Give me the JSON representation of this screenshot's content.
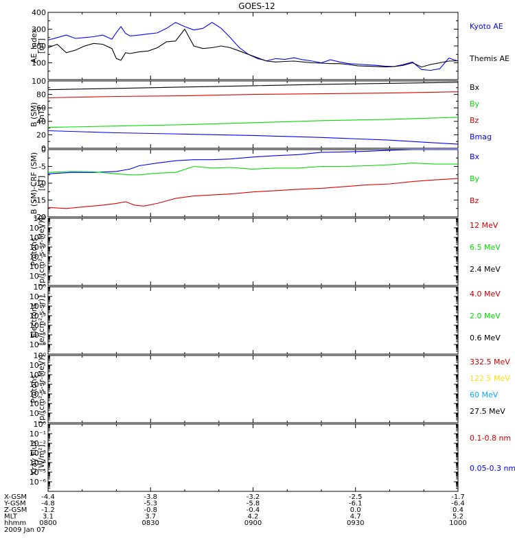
{
  "title": "GOES-12",
  "chart_data": [
    {
      "panel": "ae_index",
      "type": "line",
      "ylabel": [
        "AE_Index",
        "[nT]"
      ],
      "ylim": [
        0,
        400
      ],
      "yticks": [
        100,
        200,
        300,
        400
      ],
      "series": [
        {
          "name": "Kyoto AE",
          "color": "#0000ff",
          "x": [
            0,
            4,
            8,
            12,
            16,
            20,
            24,
            28,
            30,
            32,
            34,
            36,
            38,
            40,
            44,
            48,
            52,
            56,
            60,
            64,
            68,
            72,
            76,
            80,
            84,
            88,
            92,
            96,
            100,
            104,
            108,
            112,
            116,
            120,
            124,
            128,
            132,
            136,
            140,
            144,
            148,
            152,
            156,
            160,
            164,
            168,
            172,
            176,
            180
          ],
          "y": [
            235,
            250,
            265,
            245,
            250,
            255,
            265,
            240,
            280,
            315,
            275,
            260,
            262,
            265,
            272,
            278,
            305,
            340,
            315,
            295,
            305,
            340,
            305,
            250,
            190,
            150,
            125,
            112,
            125,
            120,
            130,
            118,
            110,
            100,
            118,
            105,
            95,
            92,
            88,
            85,
            80,
            78,
            90,
            105,
            60,
            55,
            65,
            128,
            110
          ]
        },
        {
          "name": "Themis AE",
          "color": "#000000",
          "x": [
            0,
            4,
            8,
            12,
            16,
            20,
            24,
            28,
            30,
            32,
            34,
            36,
            40,
            44,
            48,
            52,
            56,
            60,
            64,
            68,
            72,
            76,
            80,
            84,
            88,
            92,
            96,
            100,
            104,
            108,
            112,
            116,
            120,
            124,
            128,
            132,
            136,
            140,
            144,
            148,
            152,
            156,
            160,
            164,
            168,
            172,
            176,
            180
          ],
          "y": [
            190,
            210,
            160,
            175,
            200,
            215,
            210,
            185,
            125,
            115,
            160,
            155,
            165,
            170,
            190,
            225,
            230,
            300,
            200,
            185,
            190,
            200,
            190,
            170,
            150,
            130,
            110,
            105,
            108,
            110,
            105,
            100,
            98,
            95,
            95,
            90,
            82,
            80,
            78,
            76,
            78,
            85,
            100,
            75,
            90,
            100,
            110,
            112
          ]
        }
      ]
    },
    {
      "panel": "b_sm",
      "type": "line",
      "ylabel": [
        "B (SM)",
        "[nT]"
      ],
      "ylim": [
        0,
        100
      ],
      "yticks": [
        0,
        20,
        40,
        60,
        80,
        100
      ],
      "series": [
        {
          "name": "Bx",
          "color": "#000000",
          "x": [
            0,
            30,
            60,
            90,
            120,
            150,
            180
          ],
          "y": [
            87,
            89,
            91,
            93,
            95,
            96.5,
            98
          ]
        },
        {
          "name": "By",
          "color": "#00dd00",
          "x": [
            0,
            30,
            60,
            90,
            120,
            150,
            180
          ],
          "y": [
            31,
            33,
            35,
            38,
            41,
            43,
            46
          ]
        },
        {
          "name": "Bz",
          "color": "#dd0000",
          "x": [
            0,
            30,
            60,
            90,
            120,
            150,
            180
          ],
          "y": [
            75,
            77,
            78,
            80,
            81,
            82,
            84
          ]
        },
        {
          "name": "Bmag",
          "color": "#0000ff",
          "x": [
            0,
            30,
            60,
            90,
            120,
            150,
            180
          ],
          "y": [
            26,
            23,
            21,
            19,
            16,
            12,
            6
          ]
        }
      ]
    },
    {
      "panel": "b_sm_minus_crf",
      "type": "line",
      "ylabel": [
        "B (SM)-CRF (SM)",
        "[nT]"
      ],
      "ylim": [
        -20,
        0
      ],
      "yticks": [
        -20,
        -15,
        -10,
        -5,
        0
      ],
      "series": [
        {
          "name": "Bx",
          "color": "#0000ff",
          "x": [
            0,
            10,
            20,
            30,
            36,
            40,
            48,
            56,
            64,
            72,
            80,
            90,
            100,
            110,
            120,
            130,
            140,
            150,
            160,
            170,
            180
          ],
          "y": [
            -7.2,
            -6.8,
            -6.8,
            -6.5,
            -5.8,
            -4.8,
            -4.0,
            -3.3,
            -3.0,
            -3.0,
            -2.8,
            -2.2,
            -1.8,
            -1.5,
            -0.8,
            -0.7,
            -0.5,
            -0.2,
            0.2,
            0.1,
            0.0
          ]
        },
        {
          "name": "By",
          "color": "#00dd00",
          "x": [
            0,
            10,
            20,
            30,
            36,
            40,
            48,
            56,
            64,
            72,
            80,
            90,
            100,
            110,
            120,
            130,
            140,
            150,
            160,
            170,
            180
          ],
          "y": [
            -6.8,
            -6.5,
            -6.6,
            -7.2,
            -7.5,
            -7.5,
            -7.0,
            -6.8,
            -5.0,
            -5.5,
            -5.3,
            -5.8,
            -5.5,
            -5.5,
            -5.0,
            -5.0,
            -4.8,
            -4.5,
            -4.0,
            -4.3,
            -4.3
          ]
        },
        {
          "name": "Bz",
          "color": "#dd0000",
          "x": [
            0,
            8,
            16,
            24,
            30,
            34,
            38,
            42,
            48,
            56,
            64,
            72,
            80,
            90,
            100,
            110,
            120,
            130,
            140,
            150,
            160,
            170,
            180
          ],
          "y": [
            -17.2,
            -17.5,
            -17.0,
            -16.5,
            -16.0,
            -15.5,
            -16.5,
            -16.8,
            -16.0,
            -14.5,
            -13.8,
            -13.5,
            -13.2,
            -12.6,
            -12.2,
            -11.8,
            -11.5,
            -11.0,
            -10.5,
            -10.2,
            -9.5,
            -9.0,
            -8.6
          ]
        }
      ]
    },
    {
      "panel": "protons_1",
      "type": "line",
      "ylabel": [
        "Protons",
        "[p/(cm²-s-sr-MeV)]"
      ],
      "yscale": "log",
      "ylim_exp": [
        -7,
        0
      ],
      "ytick_exps": [
        -6,
        -5,
        -4,
        -3,
        -2,
        -1,
        0
      ],
      "series": [
        {
          "name": "12 MeV",
          "color": "#cc0000"
        },
        {
          "name": "6.5 MeV",
          "color": "#00dd00"
        },
        {
          "name": "2.4 MeV",
          "color": "#000000"
        }
      ]
    },
    {
      "panel": "electrons",
      "type": "line",
      "ylabel": [
        "Electrons",
        "[e/(cm²-s-sr)]"
      ],
      "yscale": "log",
      "ylim_exp": [
        -7,
        0
      ],
      "ytick_exps": [
        -6,
        -5,
        -4,
        -3,
        -2,
        -1,
        0
      ],
      "series": [
        {
          "name": "4.0 MeV",
          "color": "#cc0000"
        },
        {
          "name": "2.0 MeV",
          "color": "#00dd00"
        },
        {
          "name": "0.6 MeV",
          "color": "#000000"
        }
      ]
    },
    {
      "panel": "protons_2",
      "type": "line",
      "ylabel": [
        "Protons",
        "[p/(cm²-s-sr-MeV)]"
      ],
      "yscale": "log",
      "ylim_exp": [
        -7,
        0
      ],
      "ytick_exps": [
        -6,
        -5,
        -4,
        -3,
        -2,
        -1,
        0
      ],
      "series": [
        {
          "name": "332.5 MeV",
          "color": "#cc0000"
        },
        {
          "name": "122.5 MeV",
          "color": "#ffdd00"
        },
        {
          "name": "60 MeV",
          "color": "#00aaff"
        },
        {
          "name": "27.5 MeV",
          "color": "#000000"
        }
      ]
    },
    {
      "panel": "xray",
      "type": "line",
      "ylabel": [
        "Xray Flux",
        "[W/m²]"
      ],
      "yscale": "log",
      "ylim_exp": [
        -7,
        0
      ],
      "ytick_exps": [
        -6,
        -5,
        -4,
        -3,
        -2,
        -1,
        0
      ],
      "series": [
        {
          "name": "0.1-0.8 nm",
          "color": "#cc0000"
        },
        {
          "name": "0.05-0.3 nm",
          "color": "#0000ff"
        }
      ]
    }
  ],
  "x_axis": {
    "xlim_minutes": [
      0,
      120
    ],
    "tick_minutes": [
      0,
      30,
      60,
      90,
      120
    ],
    "row_labels": [
      "X-GSM",
      "Y-GSM",
      "Z-GSM",
      "MLT",
      "hhmm"
    ],
    "rows": [
      [
        "-4.4",
        "-3.8",
        "-3.2",
        "-2.5",
        "-1.7"
      ],
      [
        "-4.8",
        "-5.3",
        "-5.8",
        "-6.1",
        "-6.4"
      ],
      [
        "-1.2",
        "-0.8",
        "-0.4",
        "0.0",
        "0.4"
      ],
      [
        "3.1",
        "3.7",
        "4.2",
        "4.7",
        "5.2"
      ],
      [
        "0800",
        "0830",
        "0900",
        "0930",
        "1000"
      ]
    ],
    "date": "2009 Jan 07"
  }
}
